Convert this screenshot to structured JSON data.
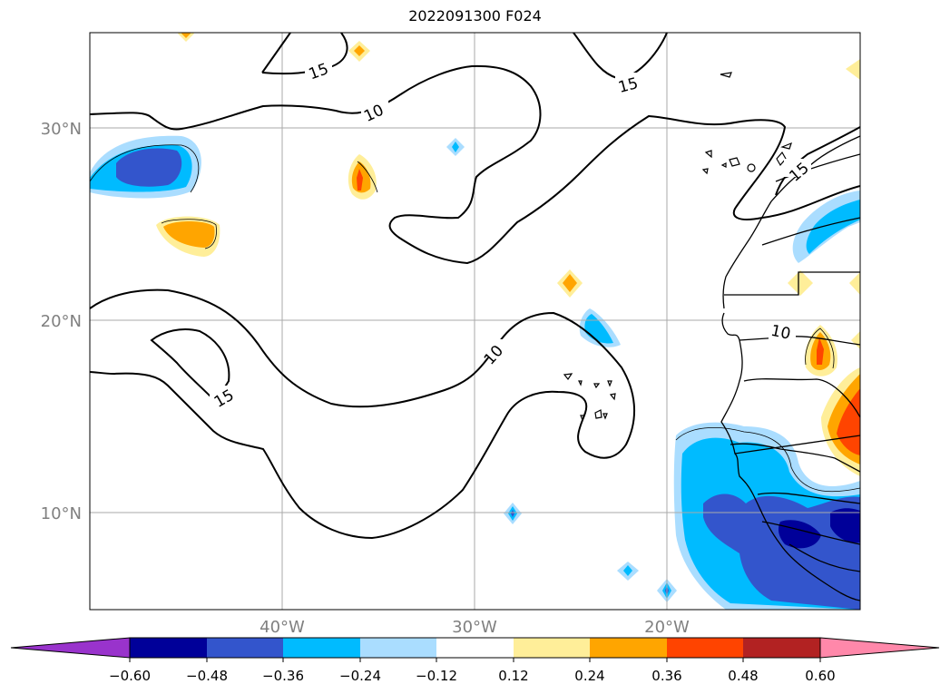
{
  "title": "2022091300 F024",
  "map": {
    "lat_ticks": [
      "30°N",
      "20°N",
      "10°N"
    ],
    "lon_ticks": [
      "40°W",
      "30°W",
      "20°W"
    ],
    "contour_labels": [
      "15",
      "10",
      "15",
      "10",
      "15",
      "15",
      "10"
    ]
  },
  "colorbar": {
    "tick_labels": [
      "−0.60",
      "−0.48",
      "−0.36",
      "−0.24",
      "−0.12",
      "0.12",
      "0.24",
      "0.36",
      "0.48",
      "0.60"
    ],
    "colors": [
      "#9933cc",
      "#000099",
      "#3355cc",
      "#00bbff",
      "#aaddff",
      "#ffffff",
      "#ffee99",
      "#ffa500",
      "#ff4400",
      "#b22222",
      "#ff88aa"
    ]
  },
  "colors": {
    "deep_blue": "#000099",
    "mid_blue": "#3355cc",
    "cyan": "#00bbff",
    "light_blue": "#aaddff",
    "yellow": "#ffee99",
    "orange": "#ffa500",
    "red_orange": "#ff4400"
  }
}
